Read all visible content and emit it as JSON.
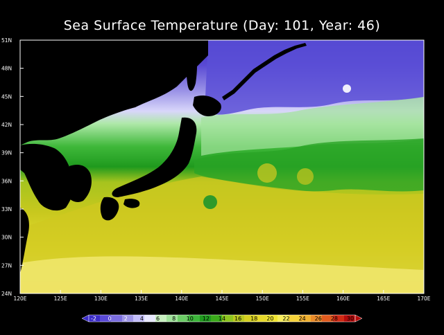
{
  "title": "Sea Surface Temperature (Day: 101, Year: 46)",
  "map": {
    "lon_range": [
      120,
      170
    ],
    "lat_range": [
      24,
      51
    ],
    "lat_ticks": [
      {
        "value": 51,
        "label": "51N"
      },
      {
        "value": 48,
        "label": "48N"
      },
      {
        "value": 45,
        "label": "45N"
      },
      {
        "value": 42,
        "label": "42N"
      },
      {
        "value": 39,
        "label": "39N"
      },
      {
        "value": 36,
        "label": "36N"
      },
      {
        "value": 33,
        "label": "33N"
      },
      {
        "value": 30,
        "label": "30N"
      },
      {
        "value": 27,
        "label": "27N"
      },
      {
        "value": 24,
        "label": "24N"
      }
    ],
    "lon_ticks": [
      {
        "value": 120,
        "label": "120E"
      },
      {
        "value": 125,
        "label": "125E"
      },
      {
        "value": 130,
        "label": "130E"
      },
      {
        "value": 135,
        "label": "135E"
      },
      {
        "value": 140,
        "label": "140E"
      },
      {
        "value": 145,
        "label": "145E"
      },
      {
        "value": 150,
        "label": "150E"
      },
      {
        "value": 155,
        "label": "155E"
      },
      {
        "value": 160,
        "label": "160E"
      },
      {
        "value": 165,
        "label": "165E"
      },
      {
        "value": 170,
        "label": "170E"
      }
    ],
    "land_color": "#000000"
  },
  "colorbar": {
    "labels": [
      "-2",
      "0",
      "2",
      "4",
      "6",
      "8",
      "10",
      "12",
      "14",
      "16",
      "18",
      "20",
      "22",
      "24",
      "26",
      "28",
      "30"
    ],
    "colors": [
      "#3c2dc8",
      "#5a4ad8",
      "#7b6ee0",
      "#9e95e8",
      "#c3befa",
      "#e8e8ff",
      "#c8f0c0",
      "#9fe29a",
      "#6ccd66",
      "#3cb53a",
      "#1f9a1e",
      "#3aaa1a",
      "#8cc41e",
      "#b9c81e",
      "#d6cf20",
      "#e6d82a",
      "#f0e430",
      "#f7ed5c",
      "#f5d23a",
      "#f0b030",
      "#ea8a28",
      "#e05a1e",
      "#d02a14",
      "#b40a0a"
    ]
  }
}
